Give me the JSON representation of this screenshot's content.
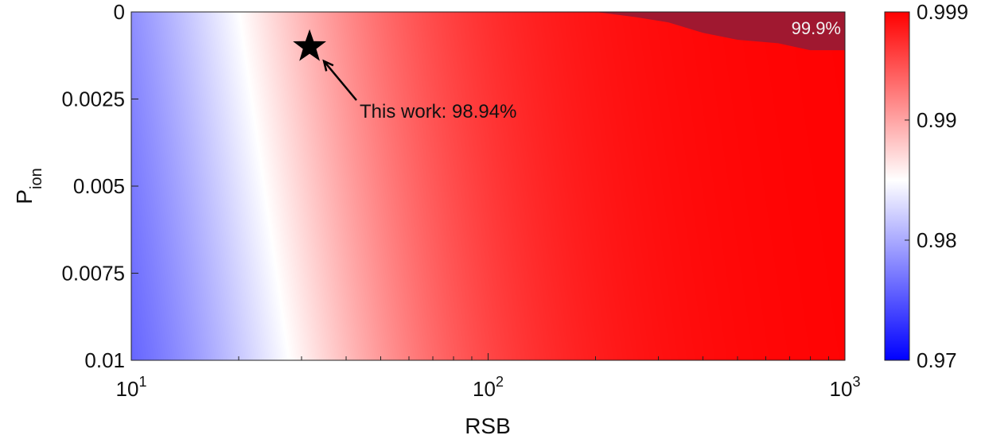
{
  "chart_data": {
    "type": "heatmap",
    "title": "",
    "xlabel": "RSB",
    "ylabel_main": "P",
    "ylabel_sub": "ion",
    "x_scale": "log",
    "xlim": [
      10,
      1000
    ],
    "x_ticks": [
      {
        "value": 10,
        "base": "10",
        "exp": "1"
      },
      {
        "value": 100,
        "base": "10",
        "exp": "2"
      },
      {
        "value": 1000,
        "base": "10",
        "exp": "3"
      }
    ],
    "ylim": [
      0,
      0.01
    ],
    "y_reversed": true,
    "y_ticks": [
      "0",
      "0.0025",
      "0.005",
      "0.0075",
      "0.01"
    ],
    "y_tick_values": [
      0,
      0.0025,
      0.005,
      0.0075,
      0.01
    ],
    "colorbar": {
      "min": 0.97,
      "max": 0.999,
      "ticks": [
        "0.97",
        "0.98",
        "0.99",
        "0.999"
      ],
      "tick_values": [
        0.97,
        0.98,
        0.99,
        0.999
      ],
      "colors": {
        "low": "#0000ff",
        "mid": "#ffffff",
        "high": "#ff0000"
      },
      "mid_value": 0.985
    },
    "saturation_region": {
      "label": "99.9%",
      "threshold": 0.999,
      "color": "#a01830"
    },
    "annotation": {
      "text": "This work: 98.94%",
      "x": 31.6,
      "y": 0.001,
      "marker": "star"
    }
  }
}
